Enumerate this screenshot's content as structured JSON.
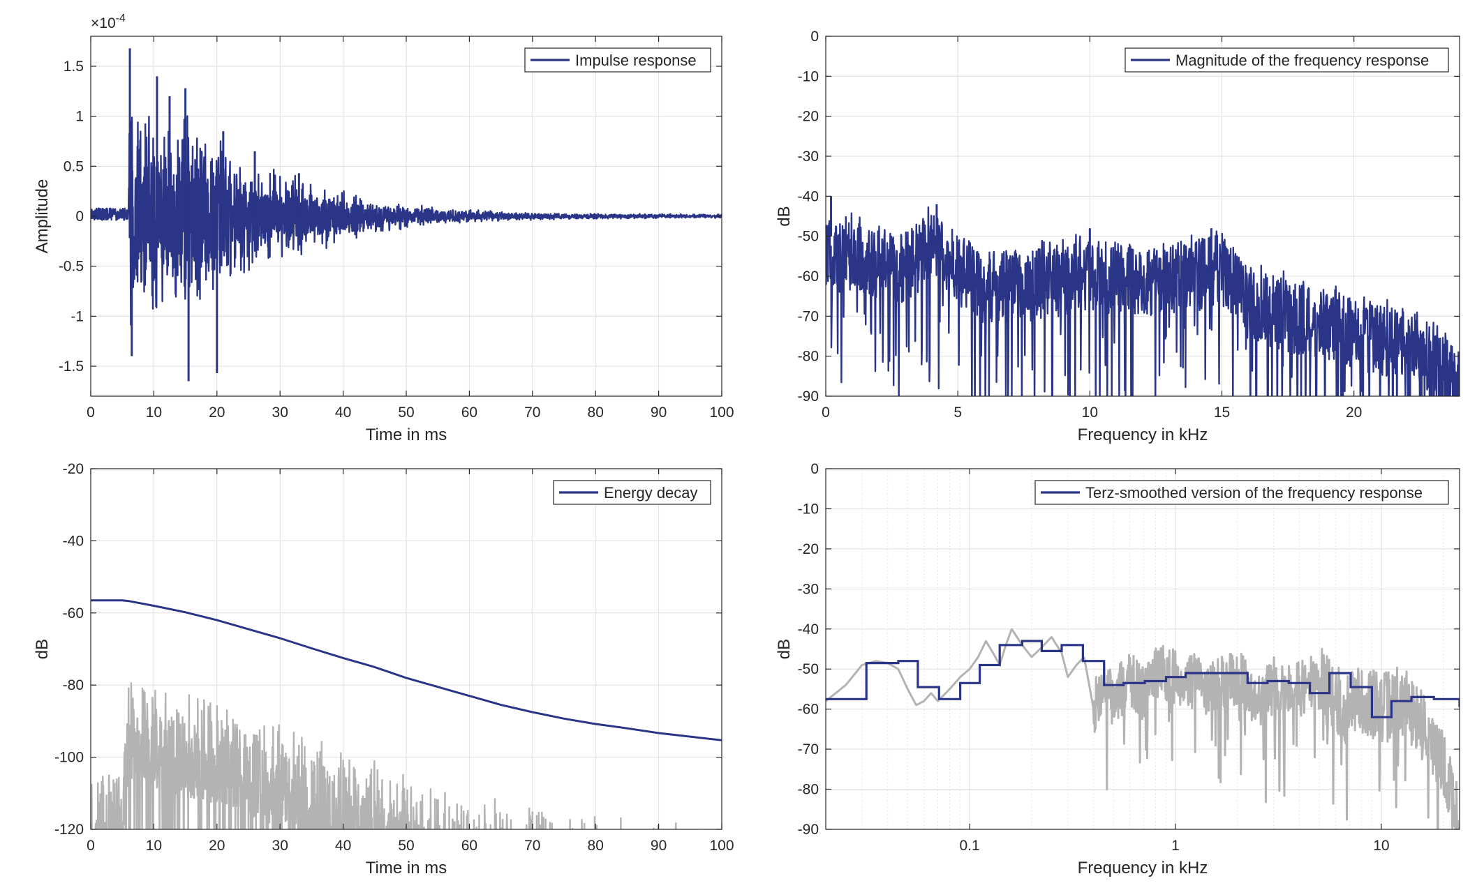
{
  "colors": {
    "series": "#2b3587",
    "gray": "#b3b3b3"
  },
  "chart_data": [
    {
      "id": "impulse",
      "type": "line",
      "xlabel": "Time in ms",
      "ylabel": "Amplitude",
      "exponent_label": "×10",
      "exponent_power": "-4",
      "xlim": [
        0,
        100
      ],
      "ylim": [
        -1.8,
        1.8
      ],
      "xticks": [
        0,
        10,
        20,
        30,
        40,
        50,
        60,
        70,
        80,
        90,
        100
      ],
      "xticklabels": [
        "0",
        "10",
        "20",
        "30",
        "40",
        "50",
        "60",
        "70",
        "80",
        "90",
        "100"
      ],
      "yticks": [
        -1.5,
        -1,
        -0.5,
        0,
        0.5,
        1,
        1.5
      ],
      "yticklabels": [
        "-1.5",
        "-1",
        "-0.5",
        "0",
        "0.5",
        "1",
        "1.5"
      ],
      "legend": [
        "Impulse response"
      ],
      "legend_position": "top-right",
      "grid": true,
      "series": [
        {
          "name": "Impulse response",
          "color": "#2b3587",
          "envelope": [
            [
              0,
              0.06
            ],
            [
              5,
              0.08
            ],
            [
              6,
              0.5
            ],
            [
              6.2,
              1.7
            ],
            [
              7,
              1.2
            ],
            [
              8,
              1.2
            ],
            [
              10,
              1.25
            ],
            [
              12,
              1.1
            ],
            [
              15,
              1.3
            ],
            [
              18,
              1.0
            ],
            [
              20,
              1.1
            ],
            [
              22,
              0.75
            ],
            [
              25,
              0.65
            ],
            [
              30,
              0.5
            ],
            [
              35,
              0.4
            ],
            [
              40,
              0.28
            ],
            [
              45,
              0.2
            ],
            [
              50,
              0.12
            ],
            [
              60,
              0.07
            ],
            [
              70,
              0.04
            ],
            [
              80,
              0.03
            ],
            [
              100,
              0.02
            ]
          ],
          "peaks": [
            [
              6.2,
              1.68
            ],
            [
              6.5,
              -1.4
            ],
            [
              10.5,
              1.4
            ],
            [
              12.5,
              1.2
            ],
            [
              15,
              1.28
            ],
            [
              15.5,
              -1.65
            ],
            [
              20,
              -1.57
            ],
            [
              21,
              0.85
            ],
            [
              26,
              0.65
            ],
            [
              33,
              0.43
            ]
          ]
        }
      ]
    },
    {
      "id": "magnitude",
      "type": "line",
      "xlabel": "Frequency in kHz",
      "ylabel": "dB",
      "xlim": [
        0,
        24
      ],
      "ylim": [
        -90,
        0
      ],
      "xticks": [
        0,
        5,
        10,
        15,
        20
      ],
      "xticklabels": [
        "0",
        "5",
        "10",
        "15",
        "20"
      ],
      "yticks": [
        0,
        -10,
        -20,
        -30,
        -40,
        -50,
        -60,
        -70,
        -80,
        -90
      ],
      "yticklabels": [
        "0",
        "-10",
        "-20",
        "-30",
        "-40",
        "-50",
        "-60",
        "-70",
        "-80",
        "-90"
      ],
      "legend": [
        "Magnitude of the frequency response"
      ],
      "legend_position": "top-right",
      "grid": true,
      "series": [
        {
          "name": "Magnitude of the frequency response",
          "color": "#2b3587",
          "mean": [
            [
              0,
              -55
            ],
            [
              1,
              -55
            ],
            [
              2,
              -57
            ],
            [
              3,
              -58
            ],
            [
              4,
              -53
            ],
            [
              5,
              -58
            ],
            [
              6,
              -63
            ],
            [
              8,
              -62
            ],
            [
              10,
              -60
            ],
            [
              12,
              -61
            ],
            [
              14,
              -60
            ],
            [
              15,
              -58
            ],
            [
              16,
              -67
            ],
            [
              18,
              -71
            ],
            [
              20,
              -74
            ],
            [
              22,
              -78
            ],
            [
              24,
              -85
            ]
          ],
          "peaks": [
            [
              0.2,
              -40
            ],
            [
              4.2,
              -42
            ],
            [
              14.6,
              -48
            ],
            [
              10,
              -48
            ],
            [
              21,
              -69
            ]
          ]
        }
      ]
    },
    {
      "id": "energy",
      "type": "line",
      "xlabel": "Time in ms",
      "ylabel": "dB",
      "xlim": [
        0,
        100
      ],
      "ylim": [
        -120,
        -20
      ],
      "xticks": [
        0,
        10,
        20,
        30,
        40,
        50,
        60,
        70,
        80,
        90,
        100
      ],
      "xticklabels": [
        "0",
        "10",
        "20",
        "30",
        "40",
        "50",
        "60",
        "70",
        "80",
        "90",
        "100"
      ],
      "yticks": [
        -20,
        -40,
        -60,
        -80,
        -100,
        -120
      ],
      "yticklabels": [
        "-20",
        "-40",
        "-60",
        "-80",
        "-100",
        "-120"
      ],
      "legend": [
        "Energy decay"
      ],
      "legend_position": "top-right",
      "grid": true,
      "series": [
        {
          "name": "Energy decay",
          "color": "#2b3587",
          "x": [
            0,
            5,
            6,
            10,
            15,
            20,
            25,
            30,
            35,
            40,
            45,
            50,
            55,
            60,
            65,
            70,
            75,
            80,
            85,
            90,
            95,
            100
          ],
          "y": [
            -56.5,
            -56.5,
            -56.7,
            -58,
            -59.8,
            -62,
            -64.5,
            -67,
            -69.8,
            -72.5,
            -75,
            -78,
            -80.5,
            -83,
            -85.5,
            -87.5,
            -89.3,
            -90.8,
            -92,
            -93.3,
            -94.3,
            -95.3
          ]
        },
        {
          "name": "",
          "color": "#b3b3b3",
          "top": [
            [
              0,
              -105
            ],
            [
              3,
              -102
            ],
            [
              5,
              -99
            ],
            [
              6,
              -76
            ],
            [
              10,
              -79
            ],
            [
              20,
              -83
            ],
            [
              30,
              -90
            ],
            [
              40,
              -97
            ],
            [
              50,
              -104
            ],
            [
              60,
              -110
            ],
            [
              70,
              -113
            ],
            [
              80,
              -116
            ],
            [
              90,
              -117
            ],
            [
              100,
              -119
            ]
          ]
        }
      ]
    },
    {
      "id": "terz",
      "type": "line",
      "xlabel": "Frequency in kHz",
      "ylabel": "dB",
      "xscale": "log",
      "xlim": [
        0.02,
        24
      ],
      "ylim": [
        -90,
        0
      ],
      "xticks": [
        0.1,
        1,
        10
      ],
      "xticklabels": [
        "0.1",
        "1",
        "10"
      ],
      "yticks": [
        0,
        -10,
        -20,
        -30,
        -40,
        -50,
        -60,
        -70,
        -80,
        -90
      ],
      "yticklabels": [
        "0",
        "-10",
        "-20",
        "-30",
        "-40",
        "-50",
        "-60",
        "-70",
        "-80",
        "-90"
      ],
      "legend": [
        "Terz-smoothed version of the frequency response"
      ],
      "legend_position": "top-right",
      "grid": true,
      "series": [
        {
          "name": "Terz-smoothed version of the frequency response",
          "color": "#2b3587",
          "step": "post",
          "x": [
            0.02,
            0.0315,
            0.045,
            0.056,
            0.071,
            0.09,
            0.112,
            0.14,
            0.18,
            0.224,
            0.28,
            0.355,
            0.45,
            0.56,
            0.71,
            0.9,
            1.12,
            1.4,
            1.8,
            2.24,
            2.8,
            3.55,
            4.5,
            5.6,
            7.1,
            9,
            11.2,
            14,
            18,
            24
          ],
          "y": [
            -57.5,
            -48.5,
            -48,
            -54.5,
            -57.5,
            -53.5,
            -49,
            -44,
            -43,
            -45.5,
            -44,
            -48,
            -54,
            -53.5,
            -53,
            -52,
            -51,
            -51,
            -51,
            -53.5,
            -53,
            -53.5,
            -56,
            -51,
            -54.5,
            -62,
            -58,
            -57,
            -57.5,
            -59.5
          ]
        },
        {
          "name": "",
          "color": "#b3b3b3",
          "x": [
            0.02,
            0.025,
            0.03,
            0.035,
            0.04,
            0.045,
            0.05,
            0.055,
            0.06,
            0.065,
            0.07,
            0.08,
            0.09,
            0.1,
            0.11,
            0.12,
            0.13,
            0.14,
            0.15,
            0.16,
            0.18,
            0.2,
            0.22,
            0.25,
            0.28,
            0.3,
            0.33,
            0.36,
            0.4,
            0.45,
            0.5,
            0.6,
            0.7,
            0.8,
            1,
            1.2,
            1.5,
            2,
            2.5,
            3,
            4,
            5,
            6,
            7,
            8,
            10,
            12,
            14,
            16,
            18,
            20,
            24
          ],
          "y": [
            -58,
            -54,
            -49,
            -48,
            -48.5,
            -50,
            -55,
            -59,
            -58,
            -56,
            -58,
            -55,
            -52,
            -50,
            -47,
            -43,
            -46,
            -49,
            -44,
            -40,
            -44,
            -47,
            -45,
            -42,
            -46,
            -52,
            -49,
            -47,
            -60,
            -54,
            -58,
            -52,
            -56,
            -50,
            -52,
            -53,
            -55,
            -52,
            -58,
            -54,
            -55,
            -53,
            -58,
            -60,
            -57,
            -60,
            -58,
            -60,
            -64,
            -70,
            -74,
            -88
          ]
        }
      ]
    }
  ]
}
